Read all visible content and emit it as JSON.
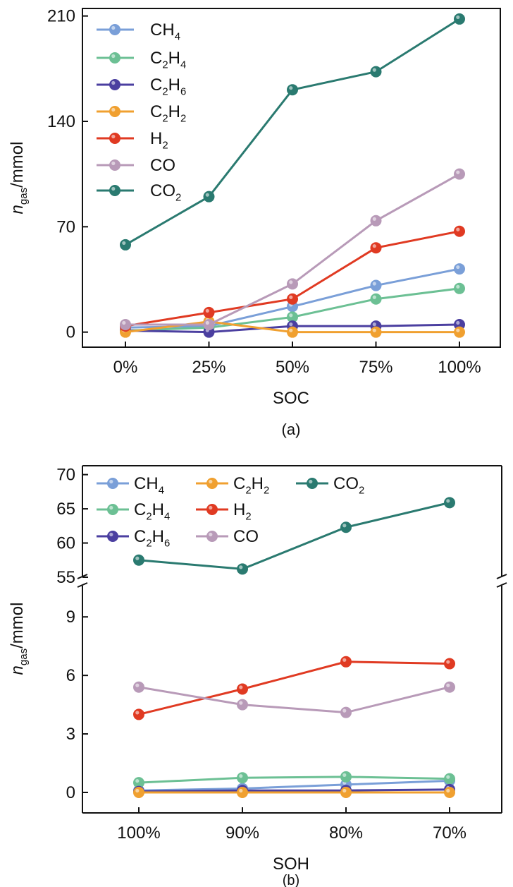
{
  "chart_data": [
    {
      "type": "line",
      "panel_label": "(a)",
      "xlabel": "SOC",
      "ylabel": {
        "italic": "n",
        "sub": "gas",
        "rest": "/mmol"
      },
      "categories": [
        "0%",
        "25%",
        "50%",
        "75%",
        "100%"
      ],
      "yticks": [
        0,
        70,
        140,
        210
      ],
      "ylim": [
        -10,
        215
      ],
      "grid": false,
      "legend_position": "top-left",
      "series": [
        {
          "name": "CH4",
          "color": "#7a9fd8",
          "values": [
            3,
            4,
            17,
            31,
            42
          ]
        },
        {
          "name": "C2H4",
          "color": "#6cc094",
          "values": [
            1,
            3,
            10,
            22,
            29
          ]
        },
        {
          "name": "C2H6",
          "color": "#4b3fa0",
          "values": [
            1,
            0,
            4,
            4,
            5
          ]
        },
        {
          "name": "C2H2",
          "color": "#f0a030",
          "values": [
            0,
            7,
            0,
            0,
            0
          ]
        },
        {
          "name": "H2",
          "color": "#e03a22",
          "values": [
            4,
            13,
            22,
            56,
            67
          ]
        },
        {
          "name": "CO",
          "color": "#b89ab8",
          "values": [
            5,
            5,
            32,
            74,
            105
          ]
        },
        {
          "name": "CO2",
          "color": "#2a7a70",
          "values": [
            58,
            90,
            161,
            173,
            208
          ]
        }
      ]
    },
    {
      "type": "line",
      "panel_label": "(b)",
      "xlabel": "SOH",
      "ylabel": {
        "italic": "n",
        "sub": "gas",
        "rest": "/mmol"
      },
      "categories": [
        "100%",
        "90%",
        "80%",
        "70%"
      ],
      "y_axis_break": true,
      "upper_yticks": [
        55,
        60,
        65,
        70
      ],
      "upper_ylim": [
        55,
        71.3
      ],
      "lower_yticks": [
        0,
        3,
        6,
        9
      ],
      "lower_ylim": [
        -1.05,
        10.6
      ],
      "grid": false,
      "legend_position": "top-left",
      "series": [
        {
          "name": "CH4",
          "color": "#7a9fd8",
          "values": [
            0.1,
            0.2,
            0.4,
            0.6
          ]
        },
        {
          "name": "C2H4",
          "color": "#6cc094",
          "values": [
            0.5,
            0.75,
            0.8,
            0.7
          ]
        },
        {
          "name": "C2H6",
          "color": "#4b3fa0",
          "values": [
            0.05,
            0.1,
            0.1,
            0.15
          ]
        },
        {
          "name": "C2H2",
          "color": "#f0a030",
          "values": [
            0,
            0,
            0,
            0
          ]
        },
        {
          "name": "H2",
          "color": "#e03a22",
          "values": [
            4.0,
            5.3,
            6.7,
            6.6
          ]
        },
        {
          "name": "CO",
          "color": "#b89ab8",
          "values": [
            5.4,
            4.5,
            4.1,
            5.4
          ]
        },
        {
          "name": "CO2",
          "color": "#2a7a70",
          "values": [
            57.5,
            56.2,
            62.3,
            65.9
          ]
        }
      ]
    }
  ]
}
